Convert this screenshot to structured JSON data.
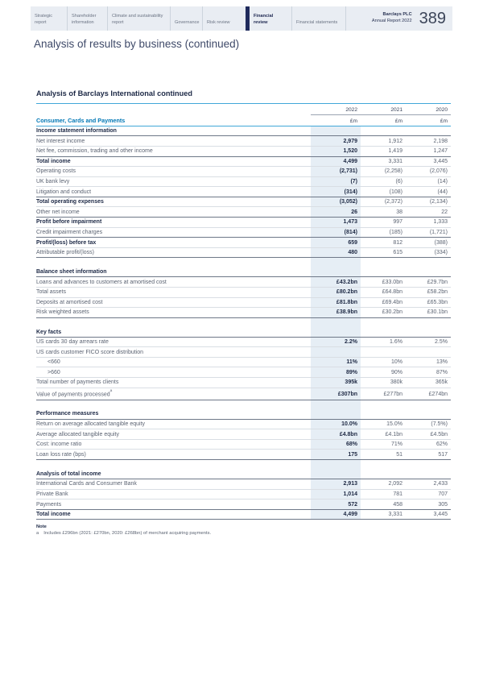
{
  "header": {
    "tabs": [
      {
        "label": "Strategic report",
        "active": false
      },
      {
        "label": "Shareholder information",
        "active": false
      },
      {
        "label": "Climate and sustainability report",
        "active": false
      },
      {
        "label": "Governance",
        "active": false
      },
      {
        "label": "Risk review",
        "active": false
      },
      {
        "label": "Financial review",
        "active": true
      },
      {
        "label": "Financial statements",
        "active": false
      }
    ],
    "brand_line1": "Barclays PLC",
    "brand_line2": "Annual Report 2022",
    "page_number": "389"
  },
  "page_title": "Analysis of results by business (continued)",
  "table": {
    "title": "Analysis of Barclays International continued",
    "group_label": "Consumer, Cards and Payments",
    "years": [
      "2022",
      "2021",
      "2020"
    ],
    "unit": "£m",
    "sections": [
      {
        "heading": "Income statement information",
        "rows": [
          {
            "label": "Net interest income",
            "values": [
              "2,979",
              "1,912",
              "2,198"
            ]
          },
          {
            "label": "Net fee, commission, trading and other income",
            "values": [
              "1,520",
              "1,419",
              "1,247"
            ]
          },
          {
            "label": "Total income",
            "values": [
              "4,499",
              "3,331",
              "3,445"
            ],
            "bold": true,
            "rule_above": true
          },
          {
            "label": "Operating costs",
            "values": [
              "(2,731)",
              "(2,258)",
              "(2,076)"
            ]
          },
          {
            "label": "UK bank levy",
            "values": [
              "(7)",
              "(6)",
              "(14)"
            ]
          },
          {
            "label": "Litigation and conduct",
            "values": [
              "(314)",
              "(108)",
              "(44)"
            ]
          },
          {
            "label": "Total operating expenses",
            "values": [
              "(3,052)",
              "(2,372)",
              "(2,134)"
            ],
            "bold": true,
            "rule_above": true
          },
          {
            "label": "Other net income",
            "values": [
              "26",
              "38",
              "22"
            ]
          },
          {
            "label": "Profit before impairment",
            "values": [
              "1,473",
              "997",
              "1,333"
            ],
            "bold": true,
            "rule_above": true
          },
          {
            "label": "Credit impairment charges",
            "values": [
              "(814)",
              "(185)",
              "(1,721)"
            ]
          },
          {
            "label": "Profit/(loss) before tax",
            "values": [
              "659",
              "812",
              "(388)"
            ],
            "bold": true,
            "rule_above": true
          },
          {
            "label": "Attributable profit/(loss)",
            "values": [
              "480",
              "615",
              "(334)"
            ]
          }
        ]
      },
      {
        "heading": "Balance sheet information",
        "rows": [
          {
            "label": "Loans and advances to customers at amortised cost",
            "values": [
              "£43.2bn",
              "£33.0bn",
              "£29.7bn"
            ]
          },
          {
            "label": "Total assets",
            "values": [
              "£80.2bn",
              "£64.8bn",
              "£58.2bn"
            ]
          },
          {
            "label": "Deposits at amortised cost",
            "values": [
              "£81.8bn",
              "£69.4bn",
              "£65.3bn"
            ]
          },
          {
            "label": "Risk weighted assets",
            "values": [
              "£38.9bn",
              "£30.2bn",
              "£30.1bn"
            ]
          }
        ]
      },
      {
        "heading": "Key facts",
        "rows": [
          {
            "label": "US cards 30 day arrears rate",
            "values": [
              "2.2%",
              "1.6%",
              "2.5%"
            ]
          },
          {
            "label": "US cards customer FICO score distribution",
            "values": [
              "",
              "",
              ""
            ]
          },
          {
            "label": "<660",
            "values": [
              "11%",
              "10%",
              "13%"
            ],
            "indent": true
          },
          {
            "label": ">660",
            "values": [
              "89%",
              "90%",
              "87%"
            ],
            "indent": true
          },
          {
            "label": "Total number of payments clients",
            "values": [
              "395k",
              "380k",
              "365k"
            ]
          },
          {
            "label": "Value of payments processed",
            "sup": "a",
            "values": [
              "£307bn",
              "£277bn",
              "£274bn"
            ]
          }
        ]
      },
      {
        "heading": "Performance measures",
        "rows": [
          {
            "label": "Return on average allocated tangible equity",
            "values": [
              "10.0%",
              "15.0%",
              "(7.5%)"
            ]
          },
          {
            "label": "Average allocated tangible equity",
            "values": [
              "£4.8bn",
              "£4.1bn",
              "£4.5bn"
            ]
          },
          {
            "label": "Cost: income ratio",
            "values": [
              "68%",
              "71%",
              "62%"
            ]
          },
          {
            "label": "Loan loss rate (bps)",
            "values": [
              "175",
              "51",
              "517"
            ]
          }
        ]
      },
      {
        "heading": "Analysis of total income",
        "rows": [
          {
            "label": "International Cards and Consumer Bank",
            "values": [
              "2,913",
              "2,092",
              "2,433"
            ]
          },
          {
            "label": "Private Bank",
            "values": [
              "1,014",
              "781",
              "707"
            ]
          },
          {
            "label": "Payments",
            "values": [
              "572",
              "458",
              "305"
            ]
          },
          {
            "label": "Total income",
            "values": [
              "4,499",
              "3,331",
              "3,445"
            ],
            "bold": true,
            "rule_above": true
          }
        ]
      }
    ]
  },
  "note": {
    "heading": "Note",
    "marker": "a",
    "text": "Includes £296bn (2021: £270bn, 2020: £268bn) of merchant acquiring payments."
  },
  "colors": {
    "accent_blue_line": "#41a8d9",
    "group_label_blue": "#0077b5",
    "dark_navy": "#1d2946",
    "active_tab_bar": "#1f2a5c",
    "column_highlight": "#e6eef5",
    "header_bar_bg": "#e9edf3"
  }
}
